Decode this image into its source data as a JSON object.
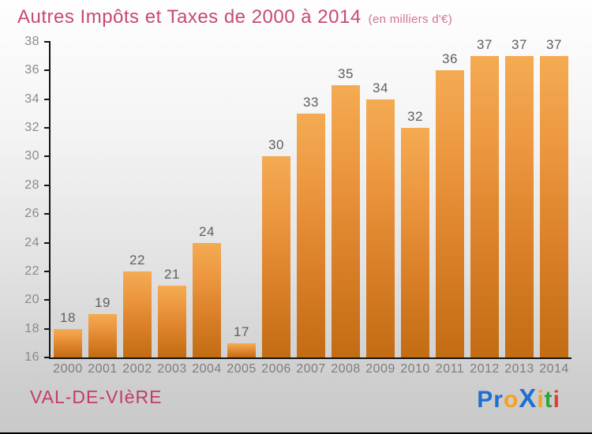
{
  "header": {
    "title": "Autres Impôts et Taxes de 2000 à 2014",
    "subtitle": "(en milliers d'€)"
  },
  "footer": {
    "place": "VAL-DE-VIèRE"
  },
  "logo": {
    "name": "Proxiti",
    "letters": [
      {
        "ch": "P",
        "color": "#1d6fd1"
      },
      {
        "ch": "r",
        "color": "#1d6fd1"
      },
      {
        "ch": "o",
        "color": "#f6a01d"
      },
      {
        "ch": "X",
        "color": "#1d6fd1",
        "big": true
      },
      {
        "ch": "i",
        "color": "#f6a01d"
      },
      {
        "ch": "t",
        "color": "#2fa43c"
      },
      {
        "ch": "i",
        "color": "#e03c31"
      }
    ]
  },
  "chart_data": {
    "type": "bar",
    "title": "Autres Impôts et Taxes de 2000 à 2014",
    "subtitle": "(en milliers d'€)",
    "categories": [
      "2000",
      "2001",
      "2002",
      "2003",
      "2004",
      "2005",
      "2006",
      "2007",
      "2008",
      "2009",
      "2010",
      "2011",
      "2012",
      "2013",
      "2014"
    ],
    "values": [
      18,
      19,
      22,
      21,
      24,
      17,
      30,
      33,
      35,
      34,
      32,
      36,
      37,
      37,
      37
    ],
    "xlabel": "",
    "ylabel": "",
    "ylim": [
      16,
      38
    ],
    "ytick_step": 2,
    "grid": false,
    "legend": false,
    "bar_color_top": "#f4ab52",
    "bar_color_bottom": "#c26c13",
    "title_color": "#c64a74",
    "axis_color": "#141414",
    "label_color": "#5f5f5f",
    "tick_label_color": "#8a8a8a"
  }
}
